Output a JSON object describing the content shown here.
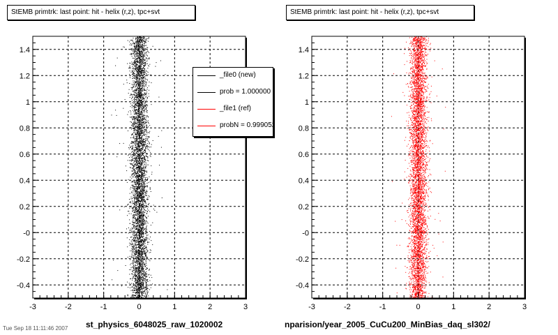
{
  "chart_data": [
    {
      "type": "scatter",
      "title": "StEMB primtrk: last point: hit - helix (r,z), tpc+svt",
      "xlabel": "st_physics_6048025_raw_1020002",
      "ylabel": "",
      "xlim": [
        -3,
        3
      ],
      "ylim": [
        -0.5,
        1.5
      ],
      "x_ticks": [
        "-3",
        "-2",
        "-1",
        "0",
        "1",
        "2",
        "3"
      ],
      "y_ticks": [
        "-0.4",
        "-0.2",
        "-0",
        "0.2",
        "0.4",
        "0.6",
        "0.8",
        "1",
        "1.2",
        "1.4"
      ],
      "grid": true,
      "marker_color": "#000000",
      "distribution": {
        "x_center": 0.0,
        "x_sigma": 0.12,
        "y_range": [
          -0.5,
          1.5
        ],
        "outlier_fraction": 0.01
      },
      "legend": {
        "placement": "top-right",
        "entries": [
          {
            "label": "_file0 (new)",
            "color": "#000000"
          },
          {
            "label": "prob = 1.000000",
            "color": "#000000"
          },
          {
            "label": "_file1 (ref)",
            "color": "#ff0000"
          },
          {
            "label": "probN = 0.999052",
            "color": "#ff0000"
          }
        ]
      }
    },
    {
      "type": "scatter",
      "title": "StEMB primtrk: last point: hit - helix (r,z), tpc+svt",
      "xlabel": "nparision/year_2005_CuCu200_MinBias_daq_sl302/",
      "ylabel": "",
      "xlim": [
        -3,
        3
      ],
      "ylim": [
        -0.5,
        1.5
      ],
      "x_ticks": [
        "-3",
        "-2",
        "-1",
        "0",
        "1",
        "2",
        "3"
      ],
      "y_ticks": [
        "-0.4",
        "-0.2",
        "-0",
        "0.2",
        "0.4",
        "0.6",
        "0.8",
        "1",
        "1.2",
        "1.4"
      ],
      "grid": true,
      "marker_color": "#ff0000",
      "distribution": {
        "x_center": 0.0,
        "x_sigma": 0.12,
        "y_range": [
          -0.5,
          1.5
        ],
        "outlier_fraction": 0.01
      }
    }
  ],
  "footer": {
    "corner_text": "Tue Sep 18 11:11:46 2007"
  }
}
